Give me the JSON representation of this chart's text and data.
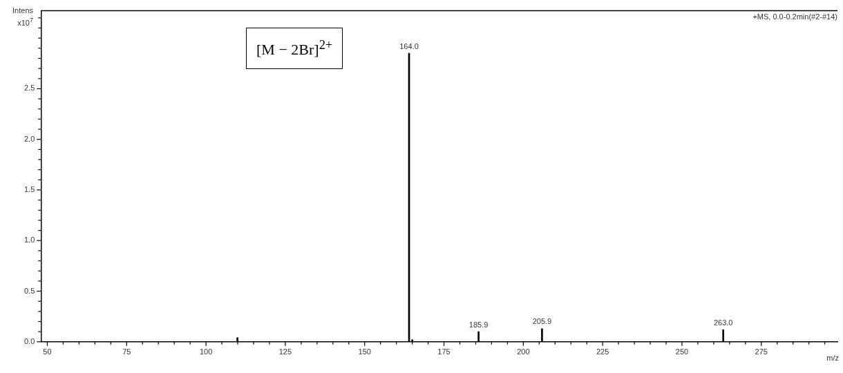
{
  "chart_data": {
    "type": "bar",
    "xlabel": "m/z",
    "ylabel": "Intens x10$^{7}$",
    "annotations": [
      "+MS, 0.0-0.2min(#2-#14)",
      "[M − 2Br]$^{2+}$",
      {
        "text": "164.0",
        "x": 164.0,
        "y": 2.85
      },
      {
        "text": "185.9",
        "x": 185.9,
        "y": 0.1
      },
      {
        "text": "205.9",
        "x": 205.9,
        "y": 0.13
      },
      {
        "text": "263.0",
        "x": 263.0,
        "y": 0.12
      }
    ],
    "x": [
      109.9,
      164.0,
      165.0,
      185.9,
      205.9,
      263.0
    ],
    "values": [
      0.04,
      2.85,
      0.02,
      0.1,
      0.13,
      0.12
    ],
    "color": "#000000",
    "xlim": [
      48,
      299
    ],
    "xticks": [
      50,
      {
        "value": 55,
        "label": null
      },
      {
        "value": 60,
        "label": null
      },
      {
        "value": 65,
        "label": null
      },
      {
        "value": 70,
        "label": null
      },
      75,
      {
        "value": 80,
        "label": null
      },
      {
        "value": 85,
        "label": null
      },
      {
        "value": 90,
        "label": null
      },
      {
        "value": 95,
        "label": null
      },
      100,
      {
        "value": 105,
        "label": null
      },
      {
        "value": 110,
        "label": null
      },
      {
        "value": 115,
        "label": null
      },
      {
        "value": 120,
        "label": null
      },
      125,
      {
        "value": 130,
        "label": null
      },
      {
        "value": 135,
        "label": null
      },
      {
        "value": 140,
        "label": null
      },
      {
        "value": 145,
        "label": null
      },
      150,
      {
        "value": 155,
        "label": null
      },
      {
        "value": 160,
        "label": null
      },
      {
        "value": 165,
        "label": null
      },
      {
        "value": 170,
        "label": null
      },
      175,
      {
        "value": 180,
        "label": null
      },
      {
        "value": 185,
        "label": null
      },
      {
        "value": 190,
        "label": null
      },
      {
        "value": 195,
        "label": null
      },
      200,
      {
        "value": 205,
        "label": null
      },
      {
        "value": 210,
        "label": null
      },
      {
        "value": 215,
        "label": null
      },
      {
        "value": 220,
        "label": null
      },
      225,
      {
        "value": 230,
        "label": null
      },
      {
        "value": 235,
        "label": null
      },
      {
        "value": 240,
        "label": null
      },
      {
        "value": 245,
        "label": null
      },
      250,
      {
        "value": 255,
        "label": null
      },
      {
        "value": 260,
        "label": null
      },
      {
        "value": 265,
        "label": null
      },
      {
        "value": 270,
        "label": null
      },
      275,
      {
        "value": 280,
        "label": null
      },
      {
        "value": 285,
        "label": null
      },
      {
        "value": 290,
        "label": null
      },
      {
        "value": 295,
        "label": null
      }
    ],
    "ylim": [
      0,
      3.27
    ],
    "yticks": [
      {
        "value": 0,
        "label": "0.0"
      },
      {
        "value": 0.1,
        "label": null
      },
      {
        "value": 0.2,
        "label": null
      },
      {
        "value": 0.3,
        "label": null
      },
      {
        "value": 0.4,
        "label": null
      },
      0.5,
      {
        "value": 0.6,
        "label": null
      },
      {
        "value": 0.7,
        "label": null
      },
      {
        "value": 0.8,
        "label": null
      },
      {
        "value": 0.9,
        "label": null
      },
      {
        "value": 1,
        "label": "1.0"
      },
      {
        "value": 1.1,
        "label": null
      },
      {
        "value": 1.2,
        "label": null
      },
      {
        "value": 1.3,
        "label": null
      },
      {
        "value": 1.4,
        "label": null
      },
      1.5,
      {
        "value": 1.6,
        "label": null
      },
      {
        "value": 1.7,
        "label": null
      },
      {
        "value": 1.8,
        "label": null
      },
      {
        "value": 1.9,
        "label": null
      },
      {
        "value": 2,
        "label": "2.0"
      },
      {
        "value": 2.1,
        "label": null
      },
      {
        "value": 2.2,
        "label": null
      },
      {
        "value": 2.3,
        "label": null
      },
      {
        "value": 2.4,
        "label": null
      },
      2.5,
      {
        "value": 2.6,
        "label": null
      },
      {
        "value": 2.7,
        "label": null
      },
      {
        "value": 2.8,
        "label": null
      },
      {
        "value": 2.9,
        "label": null
      },
      {
        "value": 3,
        "label": null
      },
      {
        "value": 3.1,
        "label": null
      },
      {
        "value": 3.2,
        "label": null
      }
    ],
    "grid": false,
    "legend": false
  }
}
